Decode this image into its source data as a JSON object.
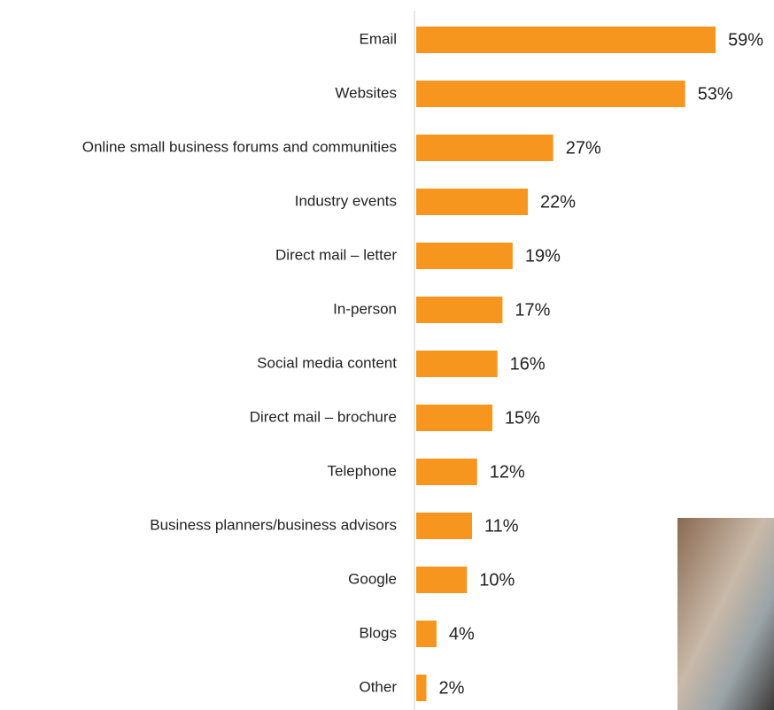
{
  "chart_data": {
    "type": "bar",
    "orientation": "horizontal",
    "color": "#f7961e",
    "categories": [
      "Email",
      "Websites",
      "Online small business forums and communities",
      "Industry events",
      "Direct mail – letter",
      "In-person",
      "Social media content",
      "Direct mail – brochure",
      "Telephone",
      "Business planners/business advisors",
      "Google",
      "Blogs",
      "Other"
    ],
    "values": [
      59,
      53,
      27,
      22,
      19,
      17,
      16,
      15,
      12,
      11,
      10,
      4,
      2
    ],
    "value_labels": [
      "59%",
      "53%",
      "27%",
      "22%",
      "19%",
      "17%",
      "16%",
      "15%",
      "12%",
      "11%",
      "10%",
      "4%",
      "2%"
    ]
  }
}
